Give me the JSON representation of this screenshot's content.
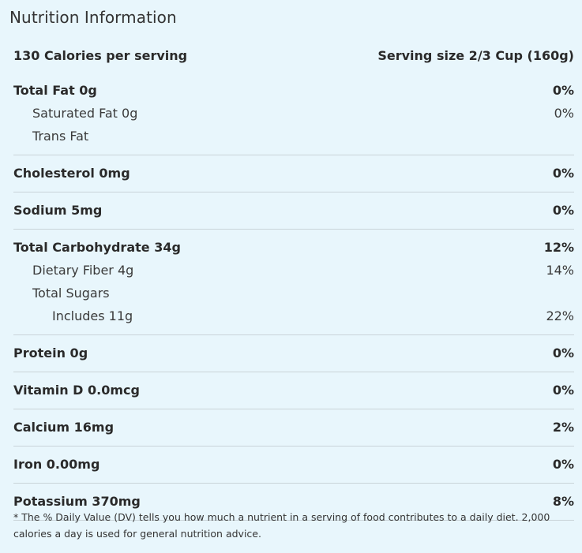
{
  "header": {
    "title": "Nutrition Information"
  },
  "summary": {
    "calories": "130 Calories per serving",
    "serving_size": "Serving size 2/3 Cup (160g)"
  },
  "groups": [
    {
      "rows": [
        {
          "label": "Total Fat 0g",
          "dv": "0%",
          "level": "main"
        },
        {
          "label": "Saturated Fat 0g",
          "dv": "0%",
          "level": "sub"
        },
        {
          "label": "Trans Fat",
          "dv": "",
          "level": "sub"
        }
      ]
    },
    {
      "rows": [
        {
          "label": "Cholesterol 0mg",
          "dv": "0%",
          "level": "main"
        }
      ]
    },
    {
      "rows": [
        {
          "label": "Sodium 5mg",
          "dv": "0%",
          "level": "main"
        }
      ]
    },
    {
      "rows": [
        {
          "label": "Total Carbohydrate 34g",
          "dv": "12%",
          "level": "main"
        },
        {
          "label": "Dietary Fiber 4g",
          "dv": "14%",
          "level": "sub"
        },
        {
          "label": "Total Sugars",
          "dv": "",
          "level": "sub"
        },
        {
          "label": "Includes 11g",
          "dv": "22%",
          "level": "sub2"
        }
      ]
    },
    {
      "rows": [
        {
          "label": "Protein 0g",
          "dv": "0%",
          "level": "main"
        }
      ]
    },
    {
      "rows": [
        {
          "label": "Vitamin D 0.0mcg",
          "dv": "0%",
          "level": "main"
        }
      ]
    },
    {
      "rows": [
        {
          "label": "Calcium 16mg",
          "dv": "2%",
          "level": "main"
        }
      ]
    },
    {
      "rows": [
        {
          "label": "Iron 0.00mg",
          "dv": "0%",
          "level": "main"
        }
      ]
    },
    {
      "rows": [
        {
          "label": "Potassium 370mg",
          "dv": "8%",
          "level": "main"
        }
      ]
    }
  ],
  "footnote": "* The % Daily Value (DV) tells you how much a nutrient in a serving of food contributes to a daily diet. 2,000 calories a day is used for general nutrition advice."
}
